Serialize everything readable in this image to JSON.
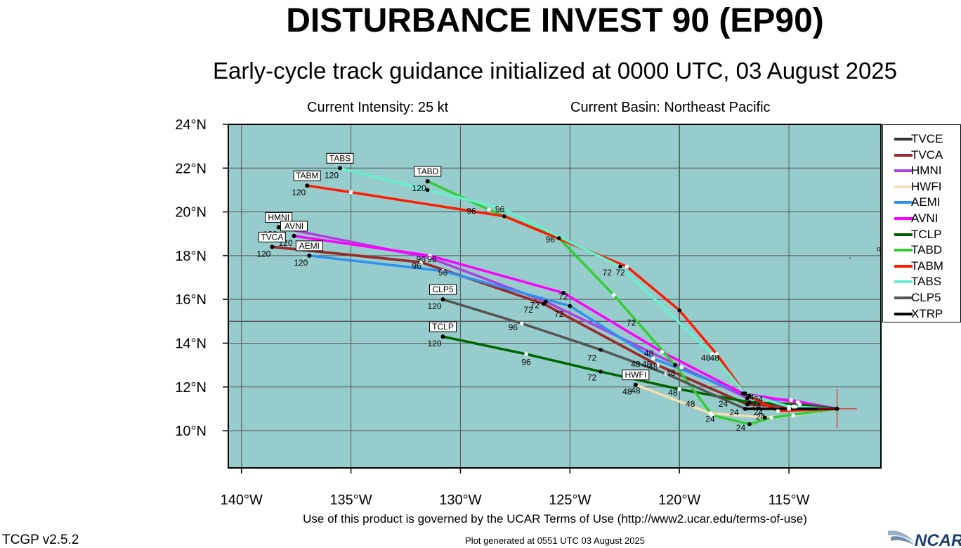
{
  "header": {
    "title": "DISTURBANCE INVEST 90 (EP90)",
    "subtitle": "Early-cycle track guidance initialized at 0000 UTC, 03 August 2025",
    "intensity": "Current Intensity: 25 kt",
    "basin": "Current Basin: Northeast Pacific"
  },
  "footer": {
    "terms": "Use of this product is governed by the UCAR Terms of Use (http://www2.ucar.edu/terms-of-use)",
    "generated": "Plot generated at 0551 UTC   03 August 2025",
    "version": "TCGP v2.5.2",
    "logo_text": "NCAR"
  },
  "chart_data": {
    "type": "line",
    "map_background": "#96cccc",
    "grid": true,
    "legend_position": "right",
    "xlim": [
      -140.6,
      -110.8
    ],
    "ylim": [
      8.3,
      24.0
    ],
    "x_ticks": [
      -140,
      -135,
      -130,
      -125,
      -120,
      -115
    ],
    "x_tick_labels": [
      "140°W",
      "135°W",
      "130°W",
      "125°W",
      "120°W",
      "115°W"
    ],
    "y_ticks": [
      10,
      12,
      14,
      16,
      18,
      20,
      22,
      24
    ],
    "y_tick_labels": [
      "10°N",
      "12°N",
      "14°N",
      "16°N",
      "18°N",
      "20°N",
      "22°N",
      "24°N"
    ],
    "origin": {
      "lon": -112.8,
      "lat": 11.0
    },
    "series": [
      {
        "name": "TVCE",
        "color": "#333333",
        "points": [
          [
            -112.8,
            11.0
          ],
          [
            -114.8,
            11.1
          ],
          [
            -116.9,
            11.2
          ],
          [
            -121.0,
            13.0
          ],
          [
            -126.2,
            15.8
          ],
          [
            -131.8,
            17.7
          ],
          [
            -138.6,
            18.4
          ]
        ]
      },
      {
        "name": "TVCA",
        "color": "#a02828",
        "points": [
          [
            -112.8,
            11.0
          ],
          [
            -114.8,
            11.1
          ],
          [
            -116.9,
            11.2
          ],
          [
            -121.0,
            13.0
          ],
          [
            -126.2,
            15.8
          ],
          [
            -131.8,
            17.7
          ],
          [
            -138.6,
            18.4
          ]
        ]
      },
      {
        "name": "HMNI",
        "color": "#b040e0",
        "points": [
          [
            -112.8,
            11.0
          ],
          [
            -114.9,
            11.4
          ],
          [
            -116.9,
            11.5
          ],
          [
            -119.9,
            12.9
          ],
          [
            -126.1,
            15.9
          ],
          [
            -131.4,
            17.9
          ],
          [
            -138.3,
            19.3
          ]
        ]
      },
      {
        "name": "HWFI",
        "color": "#f5deb3",
        "points": [
          [
            -112.8,
            11.0
          ],
          [
            -114.8,
            10.7
          ],
          [
            -116.1,
            10.6
          ],
          [
            -118.6,
            10.8
          ],
          [
            -122.0,
            12.1
          ]
        ]
      },
      {
        "name": "AEMI",
        "color": "#3090f0",
        "points": [
          [
            -112.8,
            11.0
          ],
          [
            -114.7,
            11.1
          ],
          [
            -116.8,
            11.6
          ],
          [
            -121.2,
            13.3
          ],
          [
            -125.0,
            15.7
          ],
          [
            -130.8,
            17.3
          ],
          [
            -136.9,
            18.0
          ]
        ]
      },
      {
        "name": "AVNI",
        "color": "#ff00ff",
        "points": [
          [
            -112.8,
            11.0
          ],
          [
            -114.6,
            11.3
          ],
          [
            -117.1,
            11.7
          ],
          [
            -120.8,
            13.6
          ],
          [
            -125.3,
            16.3
          ],
          [
            -131.4,
            18.0
          ],
          [
            -137.6,
            18.9
          ]
        ]
      },
      {
        "name": "TCLP",
        "color": "#006400",
        "points": [
          [
            -112.8,
            11.0
          ],
          [
            -114.5,
            11.2
          ],
          [
            -116.8,
            11.3
          ],
          [
            -120.0,
            11.9
          ],
          [
            -123.6,
            12.7
          ],
          [
            -127.0,
            13.5
          ],
          [
            -130.8,
            14.3
          ]
        ]
      },
      {
        "name": "TABD",
        "color": "#33cc33",
        "points": [
          [
            -112.8,
            11.0
          ],
          [
            -115.8,
            10.6
          ],
          [
            -116.8,
            10.3
          ],
          [
            -118.5,
            10.7
          ],
          [
            -120.2,
            13.0
          ],
          [
            -123.0,
            16.2
          ],
          [
            -125.5,
            18.8
          ],
          [
            -128.7,
            20.1
          ],
          [
            -131.5,
            21.4
          ]
        ]
      },
      {
        "name": "TABM",
        "color": "#ff1a00",
        "points": [
          [
            -112.8,
            11.0
          ],
          [
            -115.5,
            10.9
          ],
          [
            -117.0,
            11.7
          ],
          [
            -118.3,
            13.5
          ],
          [
            -120.0,
            15.5
          ],
          [
            -122.4,
            17.5
          ],
          [
            -128.0,
            19.8
          ],
          [
            -135.0,
            20.9
          ],
          [
            -137.0,
            21.2
          ]
        ]
      },
      {
        "name": "TABS",
        "color": "#66f0cc",
        "points": [
          [
            -112.8,
            11.0
          ],
          [
            -115.0,
            11.1
          ],
          [
            -117.0,
            11.7
          ],
          [
            -118.5,
            13.5
          ],
          [
            -122.7,
            17.5
          ],
          [
            -128.2,
            20.2
          ],
          [
            -131.5,
            21.0
          ],
          [
            -135.5,
            22.0
          ]
        ]
      },
      {
        "name": "CLP5",
        "color": "#555555",
        "points": [
          [
            -112.8,
            11.0
          ],
          [
            -115.0,
            11.0
          ],
          [
            -117.0,
            11.0
          ],
          [
            -120.6,
            12.6
          ],
          [
            -123.6,
            13.7
          ],
          [
            -127.2,
            14.9
          ],
          [
            -130.8,
            16.0
          ]
        ]
      },
      {
        "name": "XTRP",
        "color": "#000000",
        "points": [
          [
            -112.8,
            11.0
          ],
          [
            -115.0,
            11.0
          ],
          [
            -117.0,
            11.0
          ]
        ]
      }
    ],
    "model_labels": [
      {
        "text": "TABS",
        "lon": -135.5,
        "lat": 22.0,
        "hour": "120"
      },
      {
        "text": "TABD",
        "lon": -131.5,
        "lat": 21.4,
        "hour": "120"
      },
      {
        "text": "TABM",
        "lon": -137.0,
        "lat": 21.2,
        "hour": "120"
      },
      {
        "text": "HMNI",
        "lon": -138.3,
        "lat": 19.3,
        "hour": "120"
      },
      {
        "text": "AVNI",
        "lon": -137.6,
        "lat": 18.9,
        "hour": "120"
      },
      {
        "text": "TVCA",
        "lon": -138.6,
        "lat": 18.4,
        "hour": "120"
      },
      {
        "text": "AEMI",
        "lon": -136.9,
        "lat": 18.0,
        "hour": "120"
      },
      {
        "text": "CLP5",
        "lon": -130.8,
        "lat": 16.0,
        "hour": "120"
      },
      {
        "text": "TCLP",
        "lon": -130.8,
        "lat": 14.3,
        "hour": "120"
      },
      {
        "text": "HWFI",
        "lon": -122.0,
        "lat": 12.1,
        "hour": "48"
      }
    ],
    "hour_labels": [
      {
        "text": "96",
        "lon": -129.5,
        "lat": 19.9
      },
      {
        "text": "96",
        "lon": -128.2,
        "lat": 20.0
      },
      {
        "text": "96",
        "lon": -125.9,
        "lat": 18.6
      },
      {
        "text": "96",
        "lon": -131.8,
        "lat": 17.7
      },
      {
        "text": "96",
        "lon": -131.3,
        "lat": 17.7
      },
      {
        "text": "96",
        "lon": -132.0,
        "lat": 17.4
      },
      {
        "text": "96",
        "lon": -130.8,
        "lat": 17.1
      },
      {
        "text": "96",
        "lon": -127.6,
        "lat": 14.6
      },
      {
        "text": "96",
        "lon": -127.0,
        "lat": 13.0
      },
      {
        "text": "72",
        "lon": -123.3,
        "lat": 17.1
      },
      {
        "text": "72",
        "lon": -122.7,
        "lat": 17.1
      },
      {
        "text": "72",
        "lon": -125.3,
        "lat": 16.0
      },
      {
        "text": "72",
        "lon": -126.6,
        "lat": 15.6
      },
      {
        "text": "72",
        "lon": -126.9,
        "lat": 15.4
      },
      {
        "text": "72",
        "lon": -125.5,
        "lat": 15.2
      },
      {
        "text": "72",
        "lon": -122.2,
        "lat": 14.8
      },
      {
        "text": "72",
        "lon": -124.0,
        "lat": 13.2
      },
      {
        "text": "72",
        "lon": -124.0,
        "lat": 12.3
      },
      {
        "text": "48",
        "lon": -121.4,
        "lat": 13.4
      },
      {
        "text": "48",
        "lon": -122.0,
        "lat": 12.9
      },
      {
        "text": "48",
        "lon": -121.5,
        "lat": 12.9
      },
      {
        "text": "48",
        "lon": -121.2,
        "lat": 12.8
      },
      {
        "text": "48",
        "lon": -120.4,
        "lat": 12.5
      },
      {
        "text": "48",
        "lon": -118.8,
        "lat": 13.2
      },
      {
        "text": "48",
        "lon": -118.4,
        "lat": 13.2
      },
      {
        "text": "48",
        "lon": -122.0,
        "lat": 11.7
      },
      {
        "text": "48",
        "lon": -120.3,
        "lat": 11.6
      },
      {
        "text": "48",
        "lon": -119.5,
        "lat": 11.1
      },
      {
        "text": "24",
        "lon": -118.0,
        "lat": 11.1
      },
      {
        "text": "24",
        "lon": -117.5,
        "lat": 10.7
      },
      {
        "text": "24",
        "lon": -116.8,
        "lat": 11.4
      },
      {
        "text": "24",
        "lon": -116.4,
        "lat": 11.3
      },
      {
        "text": "24",
        "lon": -116.5,
        "lat": 11.0
      },
      {
        "text": "24",
        "lon": -116.4,
        "lat": 10.7
      },
      {
        "text": "24",
        "lon": -116.3,
        "lat": 10.5
      },
      {
        "text": "24",
        "lon": -118.6,
        "lat": 10.4
      },
      {
        "text": "24",
        "lon": -117.2,
        "lat": 10.0
      }
    ],
    "far_marks": [
      {
        "text": "-",
        "lon": -112.2,
        "lat": 17.8
      },
      {
        "text": "o",
        "lon": -110.9,
        "lat": 18.2
      }
    ]
  }
}
